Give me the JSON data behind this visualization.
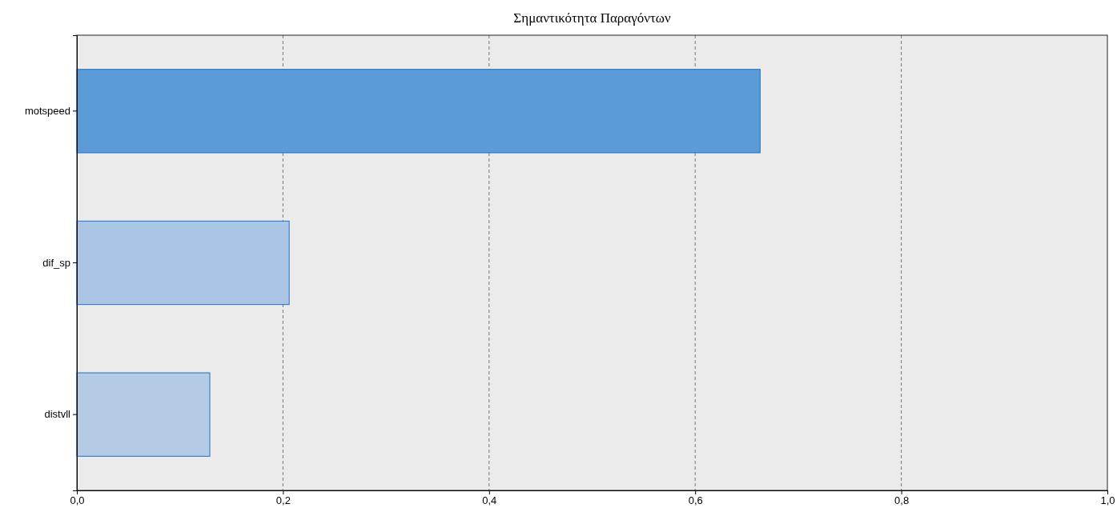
{
  "chart_data": {
    "type": "bar",
    "orientation": "horizontal",
    "title": "Σημαντικότητα Παραγόντων",
    "categories": [
      "motspeed",
      "dif_sp",
      "distvll"
    ],
    "values": [
      0.663,
      0.206,
      0.129
    ],
    "colors": [
      "#5b9bd8",
      "#abc6e5",
      "#b4cbe6"
    ],
    "xlim": [
      0,
      1
    ],
    "xticks": [
      {
        "value": 0,
        "label": "0,0"
      },
      {
        "value": 0.2,
        "label": "0,2"
      },
      {
        "value": 0.4,
        "label": "0,4"
      },
      {
        "value": 0.6,
        "label": "0,6"
      },
      {
        "value": 0.8,
        "label": "0,8"
      },
      {
        "value": 1,
        "label": "1,0"
      }
    ],
    "grid": "x"
  }
}
